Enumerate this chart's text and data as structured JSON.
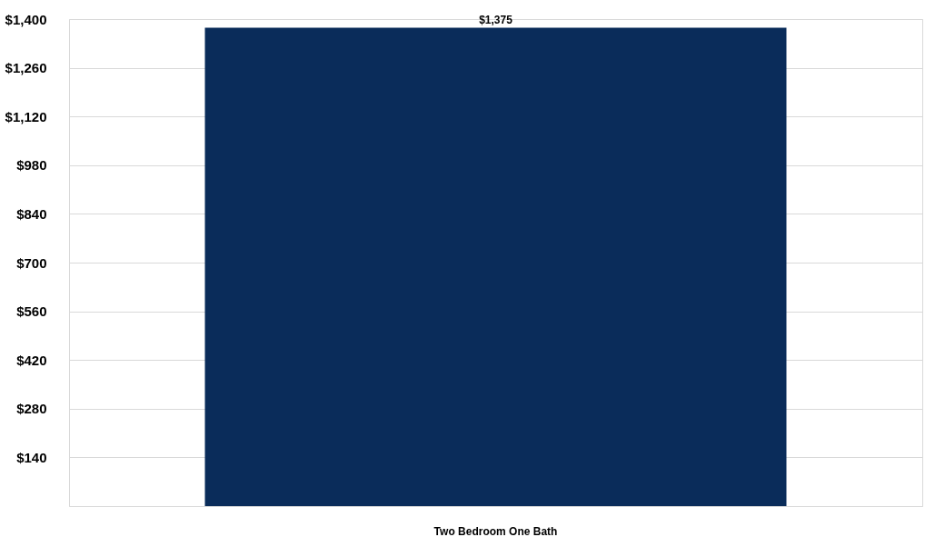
{
  "chart_data": {
    "type": "bar",
    "categories": [
      "Two Bedroom One Bath"
    ],
    "series": [
      {
        "color": "#0a2c5a",
        "values": [
          1375
        ]
      }
    ],
    "value_labels": [
      "$1,375"
    ],
    "ylim": [
      0,
      1400
    ],
    "yticks": [
      {
        "value": 0,
        "label": null
      },
      {
        "value": 140,
        "label": "$140"
      },
      {
        "value": 280,
        "label": "$280"
      },
      {
        "value": 420,
        "label": "$420"
      },
      {
        "value": 560,
        "label": "$560"
      },
      {
        "value": 700,
        "label": "$700"
      },
      {
        "value": 840,
        "label": "$840"
      },
      {
        "value": 980,
        "label": "$980"
      },
      {
        "value": 1120,
        "label": "$1,120"
      },
      {
        "value": 1260,
        "label": "$1,260"
      },
      {
        "value": 1400,
        "label": "$1,400"
      }
    ],
    "grid": "y"
  }
}
